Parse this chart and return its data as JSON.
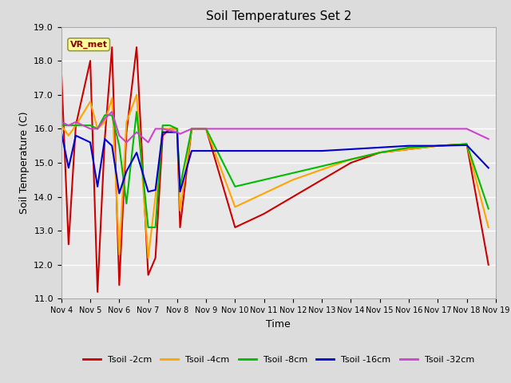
{
  "title": "Soil Temperatures Set 2",
  "xlabel": "Time",
  "ylabel": "Soil Temperature (C)",
  "ylim": [
    11.0,
    19.0
  ],
  "yticks": [
    11.0,
    12.0,
    13.0,
    14.0,
    15.0,
    16.0,
    17.0,
    18.0,
    19.0
  ],
  "x_labels": [
    "Nov 4",
    "Nov 5",
    "Nov 6",
    "Nov 7",
    "Nov 8",
    "Nov 9",
    "Nov 10",
    "Nov 11",
    "Nov 12",
    "Nov 13",
    "Nov 14",
    "Nov 15",
    "Nov 16",
    "Nov 17",
    "Nov 18",
    "Nov 19"
  ],
  "annotation": "VR_met",
  "bg_color": "#dcdcdc",
  "plot_bg_color": "#e8e8e8",
  "series": {
    "Tsoil -2cm": {
      "color": "#cc0000",
      "x": [
        0,
        0.25,
        0.5,
        1.0,
        1.25,
        1.5,
        1.75,
        2.0,
        2.25,
        2.6,
        3.0,
        3.25,
        3.5,
        3.75,
        4.0,
        4.1,
        4.5,
        5.0,
        6.0,
        7.0,
        8.0,
        9.0,
        10.0,
        11.0,
        12.0,
        13.0,
        14.0,
        14.75
      ],
      "y": [
        17.7,
        12.6,
        16.1,
        18.0,
        11.2,
        15.7,
        18.4,
        11.4,
        15.9,
        18.4,
        11.7,
        12.2,
        15.8,
        16.0,
        16.0,
        13.1,
        16.0,
        16.0,
        13.1,
        13.5,
        14.0,
        14.5,
        15.0,
        15.3,
        15.4,
        15.5,
        15.55,
        12.0
      ]
    },
    "Tsoil -4cm": {
      "color": "#ffa500",
      "x": [
        0,
        0.25,
        0.5,
        1.0,
        1.25,
        1.5,
        1.75,
        2.0,
        2.25,
        2.6,
        3.0,
        3.25,
        3.5,
        3.75,
        4.0,
        4.1,
        4.5,
        5.0,
        6.0,
        7.0,
        8.0,
        9.0,
        10.0,
        11.0,
        12.0,
        13.0,
        14.0,
        14.75
      ],
      "y": [
        16.1,
        15.8,
        16.1,
        16.8,
        16.0,
        16.2,
        16.9,
        12.3,
        16.2,
        17.0,
        12.2,
        14.0,
        16.0,
        16.0,
        16.0,
        13.6,
        16.0,
        16.0,
        13.7,
        14.1,
        14.5,
        14.8,
        15.1,
        15.3,
        15.4,
        15.5,
        15.55,
        13.1
      ]
    },
    "Tsoil -8cm": {
      "color": "#00bb00",
      "x": [
        0,
        0.25,
        0.5,
        1.0,
        1.25,
        1.5,
        1.75,
        2.0,
        2.25,
        2.6,
        3.0,
        3.25,
        3.5,
        3.75,
        4.0,
        4.1,
        4.5,
        5.0,
        6.0,
        7.0,
        8.0,
        9.0,
        10.0,
        11.0,
        12.0,
        13.0,
        14.0,
        14.75
      ],
      "y": [
        16.1,
        16.1,
        16.1,
        16.1,
        16.0,
        16.4,
        16.4,
        15.5,
        13.8,
        16.5,
        13.1,
        13.1,
        16.1,
        16.1,
        16.0,
        14.3,
        16.0,
        16.0,
        14.3,
        14.5,
        14.7,
        14.9,
        15.1,
        15.3,
        15.45,
        15.5,
        15.55,
        13.65
      ]
    },
    "Tsoil -16cm": {
      "color": "#0000cc",
      "x": [
        0,
        0.25,
        0.5,
        1.0,
        1.25,
        1.5,
        1.75,
        2.0,
        2.25,
        2.6,
        3.0,
        3.25,
        3.5,
        3.75,
        4.0,
        4.1,
        4.5,
        5.0,
        6.0,
        7.0,
        8.0,
        9.0,
        10.0,
        11.0,
        12.0,
        13.0,
        14.0,
        14.75
      ],
      "y": [
        15.9,
        14.85,
        15.8,
        15.6,
        14.3,
        15.7,
        15.5,
        14.1,
        14.75,
        15.3,
        14.15,
        14.2,
        15.9,
        15.9,
        15.9,
        14.15,
        15.35,
        15.35,
        15.35,
        15.35,
        15.35,
        15.35,
        15.4,
        15.45,
        15.5,
        15.5,
        15.52,
        14.85
      ]
    },
    "Tsoil -32cm": {
      "color": "#cc44cc",
      "x": [
        0,
        0.25,
        0.5,
        1.0,
        1.25,
        1.5,
        1.75,
        2.0,
        2.25,
        2.6,
        3.0,
        3.25,
        3.5,
        3.75,
        4.0,
        4.1,
        4.5,
        5.0,
        6.0,
        7.0,
        8.0,
        9.0,
        10.0,
        11.0,
        12.0,
        13.0,
        14.0,
        14.75
      ],
      "y": [
        16.2,
        16.1,
        16.2,
        16.0,
        16.0,
        16.3,
        16.5,
        15.8,
        15.6,
        15.9,
        15.6,
        16.0,
        16.0,
        15.95,
        15.9,
        15.85,
        16.0,
        16.0,
        16.0,
        16.0,
        16.0,
        16.0,
        16.0,
        16.0,
        16.0,
        16.0,
        16.0,
        15.7
      ]
    }
  }
}
